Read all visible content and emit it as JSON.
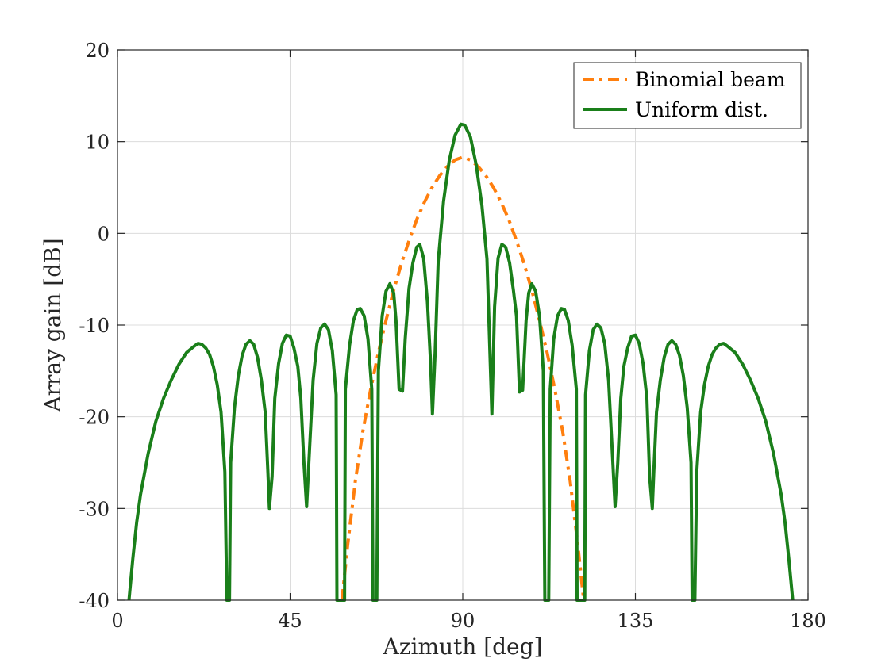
{
  "chart_data": {
    "type": "line",
    "title": "",
    "xlabel": "Azimuth [deg]",
    "ylabel": "Array gain [dB]",
    "xlim": [
      0,
      180
    ],
    "ylim": [
      -40,
      20
    ],
    "xticks": [
      0,
      45,
      90,
      135,
      180
    ],
    "yticks": [
      -40,
      -30,
      -20,
      -10,
      0,
      10,
      20
    ],
    "xtick_labels": [
      "0",
      "45",
      "90",
      "135",
      "180"
    ],
    "ytick_labels": [
      "-40",
      "-30",
      "-20",
      "-10",
      "0",
      "10",
      "20"
    ],
    "grid": true,
    "legend_position": "top-right",
    "series": [
      {
        "name": "Binomial beam",
        "color": "#ff7f0e",
        "style": "dash-dot",
        "points": [
          [
            58.5,
            -40
          ],
          [
            60,
            -34
          ],
          [
            62,
            -27
          ],
          [
            64,
            -21.5
          ],
          [
            66,
            -17
          ],
          [
            68,
            -13
          ],
          [
            70,
            -9.5
          ],
          [
            72,
            -6.2
          ],
          [
            74,
            -3.3
          ],
          [
            76,
            -0.8
          ],
          [
            78,
            1.5
          ],
          [
            80,
            3.4
          ],
          [
            82,
            5
          ],
          [
            84,
            6.3
          ],
          [
            86,
            7.3
          ],
          [
            88,
            8
          ],
          [
            90,
            8.3
          ],
          [
            92,
            8
          ],
          [
            94,
            7.3
          ],
          [
            96,
            6.3
          ],
          [
            98,
            5
          ],
          [
            100,
            3.4
          ],
          [
            102,
            1.5
          ],
          [
            104,
            -0.8
          ],
          [
            106,
            -3.3
          ],
          [
            108,
            -6.2
          ],
          [
            110,
            -9.5
          ],
          [
            112,
            -13
          ],
          [
            114,
            -17
          ],
          [
            116,
            -21.5
          ],
          [
            118,
            -27
          ],
          [
            120,
            -34
          ],
          [
            121.5,
            -40
          ]
        ]
      },
      {
        "name": "Uniform dist.",
        "color": "#1a7f1a",
        "style": "solid",
        "points": [
          [
            3,
            -40
          ],
          [
            4,
            -35.5
          ],
          [
            5,
            -31.5
          ],
          [
            6,
            -28.5
          ],
          [
            8,
            -24
          ],
          [
            10,
            -20.5
          ],
          [
            12,
            -18
          ],
          [
            14,
            -16
          ],
          [
            16,
            -14.3
          ],
          [
            18,
            -13
          ],
          [
            20,
            -12.3
          ],
          [
            21,
            -12
          ],
          [
            22,
            -12.1
          ],
          [
            23,
            -12.5
          ],
          [
            24,
            -13.2
          ],
          [
            25,
            -14.5
          ],
          [
            26,
            -16.5
          ],
          [
            27,
            -19.5
          ],
          [
            28,
            -26
          ],
          [
            28.5,
            -40
          ],
          [
            29.2,
            -40
          ],
          [
            29.5,
            -25
          ],
          [
            30.5,
            -19
          ],
          [
            31.5,
            -15.5
          ],
          [
            32.5,
            -13.3
          ],
          [
            33.5,
            -12.1
          ],
          [
            34.5,
            -11.7
          ],
          [
            35.5,
            -12.1
          ],
          [
            36.5,
            -13.5
          ],
          [
            37.5,
            -16
          ],
          [
            38.5,
            -19.5
          ],
          [
            39.2,
            -26
          ],
          [
            39.6,
            -30
          ],
          [
            40.3,
            -26.5
          ],
          [
            41,
            -18
          ],
          [
            42,
            -14.2
          ],
          [
            43,
            -12
          ],
          [
            44,
            -11.1
          ],
          [
            45,
            -11.2
          ],
          [
            46,
            -12.5
          ],
          [
            47,
            -14.5
          ],
          [
            47.8,
            -18
          ],
          [
            48.6,
            -25
          ],
          [
            49.3,
            -29.8
          ],
          [
            50,
            -24
          ],
          [
            51,
            -16
          ],
          [
            52,
            -12
          ],
          [
            53,
            -10.3
          ],
          [
            54,
            -9.9
          ],
          [
            55,
            -10.5
          ],
          [
            56,
            -12.8
          ],
          [
            57,
            -17.6
          ],
          [
            57.2,
            -40
          ],
          [
            59.2,
            -40
          ],
          [
            59.4,
            -17
          ],
          [
            60.5,
            -12.2
          ],
          [
            61.5,
            -9.5
          ],
          [
            62.5,
            -8.3
          ],
          [
            63.3,
            -8.2
          ],
          [
            64.3,
            -9
          ],
          [
            65.3,
            -11.5
          ],
          [
            66.3,
            -17
          ],
          [
            66.6,
            -40
          ],
          [
            67.6,
            -40
          ],
          [
            68,
            -15
          ],
          [
            69,
            -9
          ],
          [
            70,
            -6.3
          ],
          [
            71,
            -5.5
          ],
          [
            72,
            -6.5
          ],
          [
            72.6,
            -9.5
          ],
          [
            73.4,
            -17
          ],
          [
            74.3,
            -17.2
          ],
          [
            75,
            -11.5
          ],
          [
            76,
            -6
          ],
          [
            77,
            -3.2
          ],
          [
            78,
            -1.5
          ],
          [
            78.8,
            -1.2
          ],
          [
            79.8,
            -2.7
          ],
          [
            80.8,
            -7.5
          ],
          [
            81.6,
            -14
          ],
          [
            82.1,
            -19.7
          ],
          [
            82.8,
            -13
          ],
          [
            83.6,
            -3
          ],
          [
            85,
            3.5
          ],
          [
            86.5,
            8
          ],
          [
            88,
            10.7
          ],
          [
            89.5,
            11.9
          ],
          [
            90.5,
            11.8
          ],
          [
            92,
            10.5
          ],
          [
            93.5,
            7.5
          ],
          [
            95,
            3
          ],
          [
            96.3,
            -2.8
          ],
          [
            97.6,
            -19.7
          ],
          [
            98.3,
            -8
          ],
          [
            99.2,
            -2.7
          ],
          [
            100.2,
            -1.2
          ],
          [
            101.2,
            -1.5
          ],
          [
            102.2,
            -3.2
          ],
          [
            103.2,
            -6.2
          ],
          [
            104,
            -9
          ],
          [
            104.8,
            -17.3
          ],
          [
            105.6,
            -17.1
          ],
          [
            106.5,
            -9.5
          ],
          [
            107.2,
            -6.5
          ],
          [
            108,
            -5.5
          ],
          [
            109,
            -6.3
          ],
          [
            110,
            -9
          ],
          [
            111,
            -15
          ],
          [
            111.4,
            -40
          ],
          [
            112.4,
            -40
          ],
          [
            112.8,
            -17
          ],
          [
            113.7,
            -11.5
          ],
          [
            114.7,
            -9
          ],
          [
            115.7,
            -8.2
          ],
          [
            116.5,
            -8.3
          ],
          [
            117.5,
            -9.5
          ],
          [
            118.5,
            -12.2
          ],
          [
            119.6,
            -17
          ],
          [
            119.8,
            -40
          ],
          [
            121.8,
            -40
          ],
          [
            122,
            -17.6
          ],
          [
            123,
            -12.8
          ],
          [
            124,
            -10.5
          ],
          [
            125,
            -9.9
          ],
          [
            126,
            -10.3
          ],
          [
            127,
            -12
          ],
          [
            128,
            -16
          ],
          [
            129,
            -24
          ],
          [
            129.7,
            -29.8
          ],
          [
            130.4,
            -25
          ],
          [
            131.2,
            -18
          ],
          [
            132,
            -14.5
          ],
          [
            133,
            -12.5
          ],
          [
            134,
            -11.2
          ],
          [
            135,
            -11.1
          ],
          [
            136,
            -12
          ],
          [
            137,
            -14.2
          ],
          [
            138,
            -18
          ],
          [
            138.7,
            -26.5
          ],
          [
            139.4,
            -30
          ],
          [
            139.8,
            -26
          ],
          [
            140.5,
            -19.5
          ],
          [
            141.5,
            -16
          ],
          [
            142.5,
            -13.5
          ],
          [
            143.5,
            -12.1
          ],
          [
            144.5,
            -11.7
          ],
          [
            145.5,
            -12.1
          ],
          [
            146.5,
            -13.3
          ],
          [
            147.5,
            -15.5
          ],
          [
            148.5,
            -19
          ],
          [
            149.5,
            -25
          ],
          [
            149.8,
            -40
          ],
          [
            150.5,
            -40
          ],
          [
            151,
            -26
          ],
          [
            152,
            -19.5
          ],
          [
            153,
            -16.5
          ],
          [
            154,
            -14.5
          ],
          [
            155,
            -13.2
          ],
          [
            156,
            -12.5
          ],
          [
            157,
            -12.1
          ],
          [
            158,
            -12
          ],
          [
            159,
            -12.3
          ],
          [
            161,
            -13
          ],
          [
            163,
            -14.3
          ],
          [
            165,
            -16
          ],
          [
            167,
            -18
          ],
          [
            169,
            -20.5
          ],
          [
            171,
            -24
          ],
          [
            173,
            -28.5
          ],
          [
            174,
            -31.5
          ],
          [
            175,
            -35.5
          ],
          [
            176,
            -40
          ]
        ]
      }
    ]
  }
}
